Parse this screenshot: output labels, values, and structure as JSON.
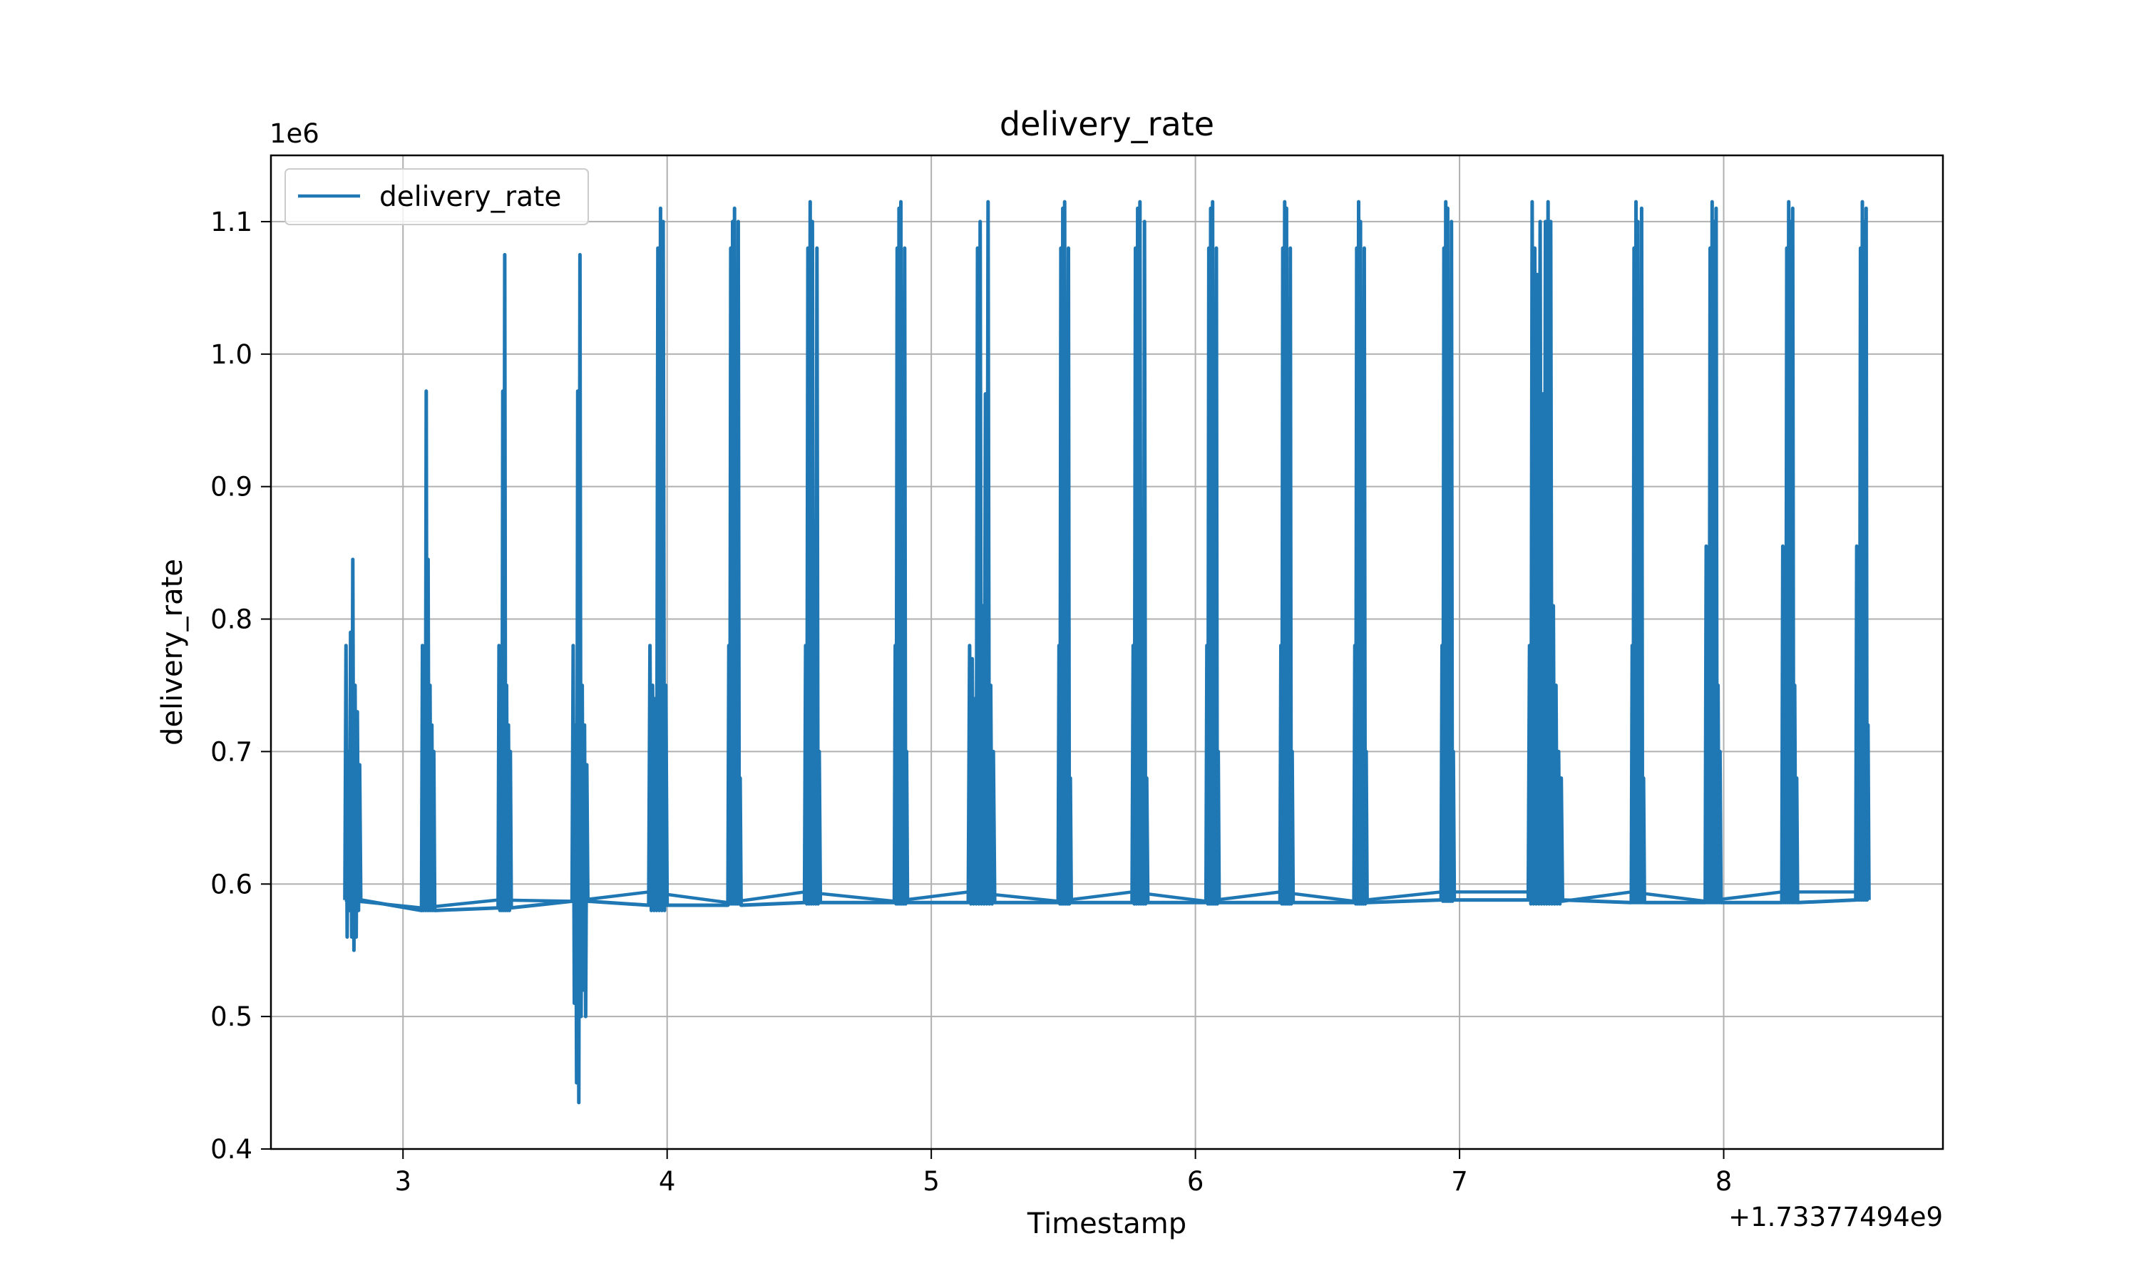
{
  "chart_data": {
    "type": "line",
    "title": "delivery_rate",
    "xlabel": "Timestamp",
    "ylabel": "delivery_rate",
    "x_offset_label": "+1.73377494e9",
    "y_scale_label": "1e6",
    "xlim": [
      2.5,
      8.83
    ],
    "ylim": [
      0.4,
      1.15
    ],
    "x_ticks": [
      3,
      4,
      5,
      6,
      7,
      8
    ],
    "x_tick_labels": [
      "3",
      "4",
      "5",
      "6",
      "7",
      "8"
    ],
    "y_ticks": [
      0.4,
      0.5,
      0.6,
      0.7,
      0.8,
      0.9,
      1.0,
      1.1
    ],
    "y_tick_labels": [
      "0.4",
      "0.5",
      "0.6",
      "0.7",
      "0.8",
      "0.9",
      "1.0",
      "1.1"
    ],
    "grid": true,
    "legend_position": "upper-left",
    "colors": {
      "series": "#1f77b4",
      "grid": "#b0b0b0",
      "axes": "#000000"
    },
    "series": [
      {
        "name": "delivery_rate",
        "bursts": [
          {
            "start": 2.78,
            "end": 2.84,
            "base": 0.588,
            "peaks": [
              0.78,
              0.56,
              0.7,
              0.58,
              0.79,
              0.56,
              0.845,
              0.55,
              0.75,
              0.56,
              0.73,
              0.58,
              0.69
            ]
          },
          {
            "start": 3.07,
            "end": 3.12,
            "base": 0.58,
            "peaks": [
              0.78,
              0.58,
              0.76,
              0.58,
              0.972,
              0.58,
              0.845,
              0.58,
              0.75,
              0.58,
              0.72,
              0.58,
              0.7
            ]
          },
          {
            "start": 3.36,
            "end": 3.41,
            "base": 0.582,
            "peaks": [
              0.78,
              0.58,
              0.74,
              0.58,
              0.972,
              0.58,
              1.075,
              0.58,
              0.75,
              0.58,
              0.72,
              0.58,
              0.7
            ]
          },
          {
            "start": 3.64,
            "end": 3.7,
            "base": 0.587,
            "peaks": [
              0.78,
              0.51,
              0.72,
              0.45,
              0.972,
              0.435,
              1.075,
              0.5,
              0.75,
              0.52,
              0.72,
              0.5,
              0.69
            ]
          },
          {
            "start": 3.93,
            "end": 4.0,
            "base": 0.584,
            "peaks": [
              0.78,
              0.58,
              0.75,
              0.58,
              0.74,
              0.58,
              1.08,
              0.58,
              1.11,
              0.58,
              1.1,
              0.58,
              0.75
            ]
          },
          {
            "start": 4.23,
            "end": 4.28,
            "base": 0.584,
            "peaks": [
              0.78,
              0.585,
              1.08,
              0.585,
              1.1,
              0.585,
              1.11,
              0.585,
              0.75,
              0.585,
              1.1,
              0.585,
              0.68
            ]
          },
          {
            "start": 4.52,
            "end": 4.58,
            "base": 0.586,
            "peaks": [
              0.78,
              0.585,
              1.08,
              0.585,
              1.115,
              0.585,
              1.1,
              0.585,
              0.75,
              0.585,
              1.08,
              0.585,
              0.7
            ]
          },
          {
            "start": 4.86,
            "end": 4.91,
            "base": 0.586,
            "peaks": [
              0.78,
              0.585,
              1.08,
              0.585,
              1.11,
              0.585,
              1.115,
              0.585,
              0.75,
              0.585,
              1.08,
              0.585,
              0.7
            ]
          },
          {
            "start": 5.14,
            "end": 5.24,
            "base": 0.586,
            "peaks": [
              0.78,
              0.585,
              0.77,
              0.585,
              0.74,
              0.585,
              1.08,
              0.585,
              1.1,
              0.585,
              0.81,
              0.585,
              0.97,
              0.585,
              1.115,
              0.585,
              0.75,
              0.585,
              0.7
            ]
          },
          {
            "start": 5.48,
            "end": 5.53,
            "base": 0.586,
            "peaks": [
              0.78,
              0.585,
              1.08,
              0.585,
              1.11,
              0.585,
              1.115,
              0.585,
              0.75,
              0.585,
              1.08,
              0.585,
              0.68
            ]
          },
          {
            "start": 5.76,
            "end": 5.82,
            "base": 0.586,
            "peaks": [
              0.78,
              0.585,
              1.08,
              0.585,
              1.11,
              0.585,
              1.115,
              0.585,
              0.75,
              0.585,
              1.1,
              0.585,
              0.68
            ]
          },
          {
            "start": 6.04,
            "end": 6.09,
            "base": 0.586,
            "peaks": [
              0.78,
              0.585,
              1.08,
              0.585,
              1.11,
              0.585,
              1.115,
              0.585,
              0.75,
              0.585,
              1.08,
              0.585,
              0.7
            ]
          },
          {
            "start": 6.32,
            "end": 6.37,
            "base": 0.586,
            "peaks": [
              0.78,
              0.585,
              1.08,
              0.585,
              1.115,
              0.585,
              1.11,
              0.585,
              0.75,
              0.585,
              1.08,
              0.585,
              0.7
            ]
          },
          {
            "start": 6.6,
            "end": 6.65,
            "base": 0.586,
            "peaks": [
              0.78,
              0.585,
              1.08,
              0.585,
              1.115,
              0.585,
              1.1,
              0.585,
              0.75,
              0.585,
              1.08,
              0.585,
              0.7
            ]
          },
          {
            "start": 6.93,
            "end": 6.98,
            "base": 0.588,
            "peaks": [
              0.78,
              0.587,
              1.08,
              0.587,
              1.115,
              0.587,
              1.11,
              0.587,
              0.75,
              0.587,
              1.1,
              0.587,
              0.7
            ]
          },
          {
            "start": 7.26,
            "end": 7.39,
            "base": 0.588,
            "peaks": [
              0.78,
              0.585,
              1.115,
              0.585,
              1.08,
              0.585,
              1.06,
              0.585,
              1.1,
              0.585,
              0.97,
              0.585,
              1.1,
              0.585,
              1.115,
              0.585,
              1.1,
              0.585,
              0.81,
              0.585,
              0.75,
              0.585,
              0.7,
              0.585,
              0.68
            ]
          },
          {
            "start": 7.65,
            "end": 7.7,
            "base": 0.586,
            "peaks": [
              0.78,
              0.586,
              1.08,
              0.586,
              1.115,
              0.586,
              1.1,
              0.586,
              0.75,
              0.586,
              1.11,
              0.586,
              0.68
            ]
          },
          {
            "start": 7.93,
            "end": 7.99,
            "base": 0.586,
            "peaks": [
              0.855,
              0.586,
              0.78,
              0.586,
              1.08,
              0.586,
              1.115,
              0.586,
              1.1,
              0.586,
              1.11,
              0.586,
              0.75,
              0.586,
              0.7
            ]
          },
          {
            "start": 8.22,
            "end": 8.28,
            "base": 0.586,
            "peaks": [
              0.855,
              0.586,
              0.78,
              0.586,
              1.08,
              0.586,
              1.115,
              0.586,
              1.1,
              0.586,
              1.11,
              0.586,
              0.75,
              0.586,
              0.68
            ]
          },
          {
            "start": 8.5,
            "end": 8.55,
            "base": 0.588,
            "peaks": [
              0.855,
              0.588,
              0.78,
              0.588,
              1.08,
              0.588,
              1.115,
              0.588,
              1.1,
              0.588,
              1.11,
              0.588,
              0.72
            ]
          }
        ],
        "baseline_trend": [
          [
            2.78,
            0.588
          ],
          [
            3.07,
            0.582
          ],
          [
            3.36,
            0.588
          ],
          [
            3.64,
            0.587
          ],
          [
            3.93,
            0.594
          ],
          [
            4.23,
            0.586
          ],
          [
            4.52,
            0.594
          ],
          [
            4.86,
            0.587
          ],
          [
            5.14,
            0.594
          ],
          [
            5.48,
            0.587
          ],
          [
            5.76,
            0.594
          ],
          [
            6.04,
            0.587
          ],
          [
            6.32,
            0.594
          ],
          [
            6.6,
            0.587
          ],
          [
            6.93,
            0.594
          ],
          [
            7.26,
            0.594
          ],
          [
            7.39,
            0.587
          ],
          [
            7.65,
            0.594
          ],
          [
            7.93,
            0.587
          ],
          [
            8.22,
            0.594
          ],
          [
            8.55,
            0.594
          ]
        ]
      }
    ]
  }
}
